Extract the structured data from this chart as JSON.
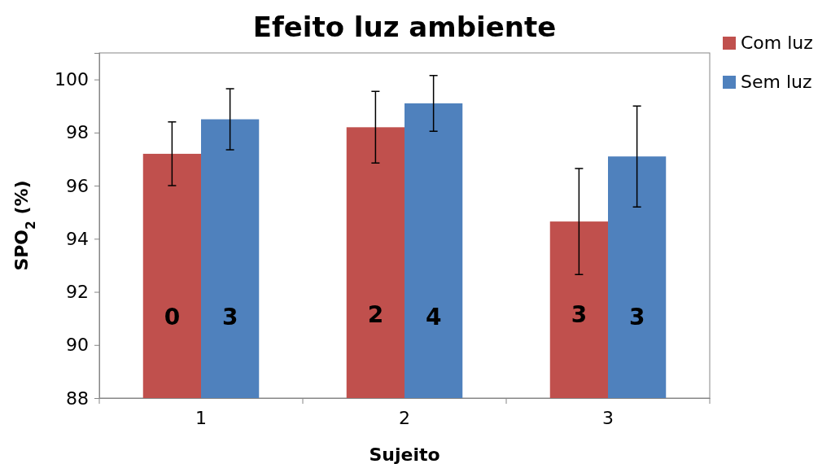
{
  "chart_data": {
    "type": "bar",
    "title": "Efeito luz ambiente",
    "xlabel": "Sujeito",
    "ylabel": "SPO$_{2}$ (%)",
    "categories": [
      "1",
      "2",
      "3"
    ],
    "series": [
      {
        "name": "Com luz",
        "color": "#c0504d",
        "values": [
          97.2,
          98.2,
          94.65
        ],
        "errors": [
          1.2,
          1.35,
          2
        ]
      },
      {
        "name": "Sem luz",
        "color": "#4f81bd",
        "values": [
          98.5,
          99.1,
          97.1
        ],
        "errors": [
          1.15,
          1.05,
          1.9
        ]
      }
    ],
    "ylim": [
      88,
      101
    ],
    "yticks": [
      88,
      90,
      92,
      94,
      96,
      98,
      100
    ],
    "grid": false,
    "legend": "top right",
    "annotations": [
      {
        "text": "0",
        "x": "1",
        "y": 91
      },
      {
        "text": "3",
        "x": "1",
        "y": 91
      },
      {
        "text": "2",
        "x": "2",
        "y": 91.1
      },
      {
        "text": "4",
        "x": "2",
        "y": 91
      },
      {
        "text": "3",
        "x": "3",
        "y": 91.1
      },
      {
        "text": "3",
        "x": "3",
        "y": 91
      }
    ]
  }
}
